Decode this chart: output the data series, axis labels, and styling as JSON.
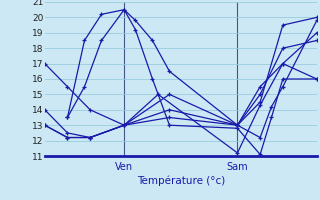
{
  "xlabel": "Température (°c)",
  "background_color": "#cce8f4",
  "grid_color": "#99ccdd",
  "line_color": "#1a1aaa",
  "ylim": [
    11,
    21
  ],
  "xlim": [
    0,
    48
  ],
  "ven_x": 14,
  "sam_x": 34,
  "ven_label": "Ven",
  "sam_label": "Sam",
  "series": [
    [
      [
        0,
        17.0
      ],
      [
        4,
        15.5
      ],
      [
        8,
        14.0
      ],
      [
        14,
        13.0
      ],
      [
        20,
        15.0
      ],
      [
        34,
        11.2
      ],
      [
        38,
        14.3
      ],
      [
        42,
        17.0
      ],
      [
        48,
        19.0
      ]
    ],
    [
      [
        0,
        14.0
      ],
      [
        4,
        12.5
      ],
      [
        8,
        12.2
      ],
      [
        14,
        13.0
      ],
      [
        22,
        15.0
      ],
      [
        34,
        13.0
      ],
      [
        38,
        15.5
      ],
      [
        42,
        17.0
      ],
      [
        48,
        16.0
      ]
    ],
    [
      [
        0,
        13.0
      ],
      [
        4,
        12.2
      ],
      [
        8,
        12.2
      ],
      [
        14,
        13.0
      ],
      [
        22,
        14.0
      ],
      [
        34,
        13.0
      ],
      [
        38,
        15.0
      ],
      [
        42,
        18.0
      ],
      [
        48,
        18.5
      ]
    ],
    [
      [
        0,
        13.0
      ],
      [
        4,
        12.2
      ],
      [
        8,
        12.2
      ],
      [
        14,
        13.0
      ],
      [
        22,
        13.5
      ],
      [
        34,
        13.0
      ],
      [
        38,
        14.5
      ],
      [
        42,
        19.5
      ],
      [
        48,
        20.0
      ]
    ],
    [
      [
        4,
        13.5
      ],
      [
        7,
        18.5
      ],
      [
        10,
        20.2
      ],
      [
        14,
        20.5
      ],
      [
        16,
        19.2
      ],
      [
        19,
        16.0
      ],
      [
        22,
        13.0
      ],
      [
        34,
        12.8
      ],
      [
        38,
        11.1
      ],
      [
        40,
        13.5
      ],
      [
        42,
        16.0
      ],
      [
        48,
        16.0
      ]
    ],
    [
      [
        4,
        13.5
      ],
      [
        7,
        15.5
      ],
      [
        10,
        18.5
      ],
      [
        14,
        20.5
      ],
      [
        16,
        19.8
      ],
      [
        19,
        18.5
      ],
      [
        22,
        16.5
      ],
      [
        34,
        13.0
      ],
      [
        38,
        12.2
      ],
      [
        40,
        14.2
      ],
      [
        42,
        15.5
      ],
      [
        48,
        19.8
      ]
    ]
  ]
}
